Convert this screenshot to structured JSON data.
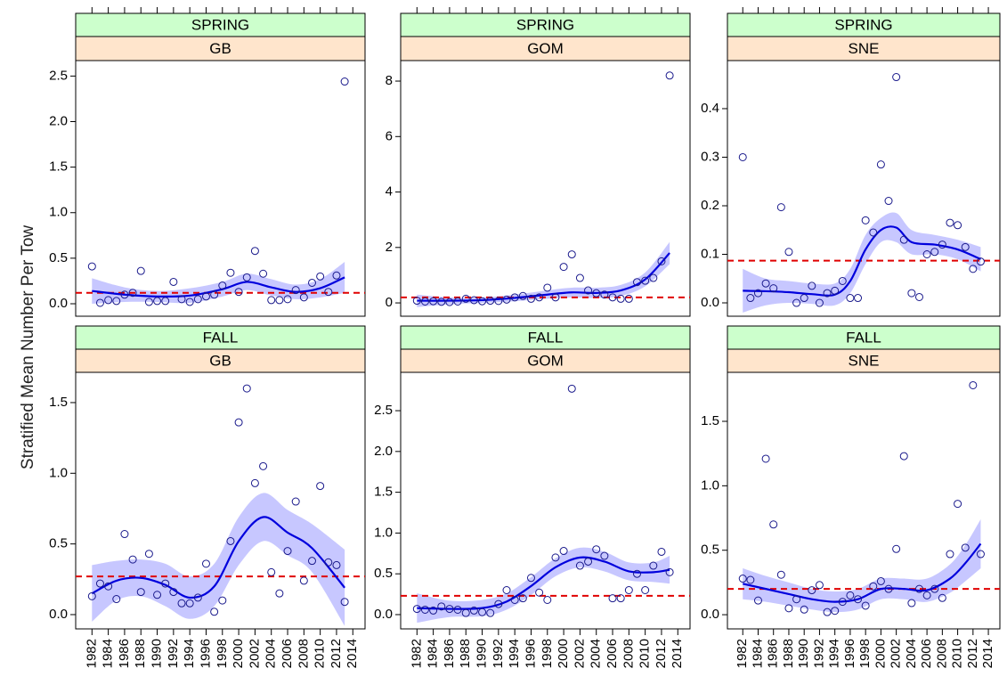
{
  "chart_data": [
    {
      "type": "scatter",
      "season": "SPRING",
      "region": "GB",
      "ylabel": "Stratified Mean Number Per Tow",
      "x": [
        1982,
        1983,
        1984,
        1985,
        1986,
        1987,
        1988,
        1989,
        1990,
        1991,
        1992,
        1993,
        1994,
        1995,
        1996,
        1997,
        1998,
        1999,
        2000,
        2001,
        2002,
        2003,
        2004,
        2005,
        2006,
        2007,
        2008,
        2009,
        2010,
        2011,
        2012,
        2013
      ],
      "values": [
        0.41,
        0.01,
        0.04,
        0.03,
        0.1,
        0.12,
        0.36,
        0.02,
        0.03,
        0.03,
        0.24,
        0.05,
        0.02,
        0.05,
        0.08,
        0.1,
        0.2,
        0.34,
        0.13,
        0.29,
        0.58,
        0.33,
        0.04,
        0.04,
        0.05,
        0.15,
        0.07,
        0.23,
        0.3,
        0.13,
        0.31,
        2.44
      ],
      "smooth": {
        "x": [
          1982,
          1986,
          1990,
          1994,
          1998,
          2001,
          2004,
          2007,
          2010,
          2013
        ],
        "values": [
          0.14,
          0.1,
          0.08,
          0.09,
          0.16,
          0.24,
          0.18,
          0.13,
          0.17,
          0.29
        ],
        "lower": [
          0.0,
          0.02,
          0.02,
          0.01,
          0.08,
          0.15,
          0.09,
          0.05,
          0.07,
          0.12
        ],
        "upper": [
          0.28,
          0.18,
          0.14,
          0.17,
          0.24,
          0.33,
          0.27,
          0.21,
          0.27,
          0.46
        ]
      },
      "mean": 0.12,
      "xlim": [
        1980,
        2015.5
      ],
      "xticks": [
        1982,
        1984,
        1986,
        1988,
        1990,
        1992,
        1994,
        1996,
        1998,
        2000,
        2002,
        2004,
        2006,
        2008,
        2010,
        2012,
        2014
      ],
      "ylim": [
        -0.137,
        2.67
      ],
      "yticks": [
        {
          "value": 0,
          "label": "0.0"
        },
        0.5,
        {
          "value": 1,
          "label": "1.0"
        },
        1.5,
        {
          "value": 2,
          "label": "2.0"
        },
        2.5
      ]
    },
    {
      "type": "scatter",
      "season": "SPRING",
      "region": "GOM",
      "x": [
        1982,
        1983,
        1984,
        1985,
        1986,
        1987,
        1988,
        1989,
        1990,
        1991,
        1992,
        1993,
        1994,
        1995,
        1996,
        1997,
        1998,
        1999,
        2000,
        2001,
        2002,
        2003,
        2004,
        2005,
        2006,
        2007,
        2008,
        2009,
        2010,
        2011,
        2012,
        2013
      ],
      "values": [
        0.08,
        0.05,
        0.06,
        0.04,
        0.03,
        0.05,
        0.15,
        0.1,
        0.06,
        0.08,
        0.07,
        0.12,
        0.2,
        0.25,
        0.15,
        0.2,
        0.55,
        0.2,
        1.3,
        1.75,
        0.9,
        0.45,
        0.35,
        0.3,
        0.2,
        0.15,
        0.15,
        0.75,
        0.8,
        0.9,
        1.5,
        8.2
      ],
      "smooth": {
        "x": [
          1982,
          1986,
          1990,
          1994,
          1998,
          2001,
          2004,
          2007,
          2010,
          2013
        ],
        "values": [
          0.08,
          0.08,
          0.1,
          0.18,
          0.3,
          0.38,
          0.36,
          0.45,
          0.85,
          1.8
        ],
        "lower": [
          -0.15,
          -0.05,
          0.0,
          0.06,
          0.15,
          0.2,
          0.18,
          0.25,
          0.6,
          1.4
        ],
        "upper": [
          0.3,
          0.2,
          0.2,
          0.3,
          0.45,
          0.55,
          0.55,
          0.65,
          1.1,
          2.2
        ]
      },
      "mean": 0.2,
      "xlim": [
        1980,
        2015.5
      ],
      "xticks": [
        1982,
        1984,
        1986,
        1988,
        1990,
        1992,
        1994,
        1996,
        1998,
        2000,
        2002,
        2004,
        2006,
        2008,
        2010,
        2012,
        2014
      ],
      "ylim": [
        -0.48,
        8.74
      ],
      "yticks": [
        0,
        2,
        4,
        6,
        8
      ]
    },
    {
      "type": "scatter",
      "season": "SPRING",
      "region": "SNE",
      "x": [
        1982,
        1983,
        1984,
        1985,
        1986,
        1987,
        1988,
        1989,
        1990,
        1991,
        1992,
        1993,
        1994,
        1995,
        1996,
        1997,
        1998,
        1999,
        2000,
        2001,
        2002,
        2003,
        2004,
        2005,
        2006,
        2007,
        2008,
        2009,
        2010,
        2011,
        2012,
        2013
      ],
      "values": [
        0.3,
        0.01,
        0.02,
        0.04,
        0.03,
        0.197,
        0.105,
        0.0,
        0.01,
        0.035,
        0.0,
        0.02,
        0.025,
        0.045,
        0.01,
        0.01,
        0.17,
        0.145,
        0.285,
        0.21,
        0.465,
        0.13,
        0.02,
        0.012,
        0.1,
        0.105,
        0.12,
        0.165,
        0.16,
        0.115,
        0.07,
        0.085
      ],
      "smooth": {
        "x": [
          1982,
          1985,
          1988,
          1991,
          1994,
          1996,
          1998,
          2000,
          2002,
          2004,
          2007,
          2010,
          2013
        ],
        "values": [
          0.025,
          0.024,
          0.022,
          0.018,
          0.017,
          0.045,
          0.11,
          0.15,
          0.155,
          0.125,
          0.12,
          0.11,
          0.09
        ],
        "lower": [
          -0.02,
          -0.005,
          0.0,
          -0.002,
          -0.005,
          0.02,
          0.08,
          0.125,
          0.125,
          0.1,
          0.1,
          0.09,
          0.065
        ],
        "upper": [
          0.07,
          0.05,
          0.045,
          0.04,
          0.04,
          0.07,
          0.14,
          0.175,
          0.185,
          0.15,
          0.14,
          0.13,
          0.115
        ]
      },
      "mean": 0.087,
      "xlim": [
        1980,
        2015.5
      ],
      "xticks": [
        1982,
        1984,
        1986,
        1988,
        1990,
        1992,
        1994,
        1996,
        1998,
        2000,
        2002,
        2004,
        2006,
        2008,
        2010,
        2012,
        2014
      ],
      "ylim": [
        -0.0275,
        0.499
      ],
      "yticks": [
        {
          "value": 0,
          "label": "0.0"
        },
        0.1,
        0.2,
        0.3,
        0.4
      ]
    },
    {
      "type": "scatter",
      "season": "FALL",
      "region": "GB",
      "x": [
        1982,
        1983,
        1984,
        1985,
        1986,
        1987,
        1988,
        1989,
        1990,
        1991,
        1992,
        1993,
        1994,
        1995,
        1996,
        1997,
        1998,
        1999,
        2000,
        2001,
        2002,
        2003,
        2004,
        2005,
        2006,
        2007,
        2008,
        2009,
        2010,
        2011,
        2012,
        2013
      ],
      "values": [
        0.13,
        0.22,
        0.2,
        0.11,
        0.57,
        0.39,
        0.16,
        0.43,
        0.14,
        0.22,
        0.16,
        0.08,
        0.08,
        0.12,
        0.36,
        0.02,
        0.1,
        0.52,
        1.36,
        1.6,
        0.93,
        1.05,
        0.3,
        0.15,
        0.45,
        0.8,
        0.24,
        0.38,
        0.91,
        0.37,
        0.35,
        0.09
      ],
      "smooth": {
        "x": [
          1982,
          1985,
          1988,
          1991,
          1994,
          1997,
          2000,
          2003,
          2006,
          2009,
          2013
        ],
        "values": [
          0.15,
          0.24,
          0.26,
          0.21,
          0.12,
          0.2,
          0.52,
          0.69,
          0.58,
          0.47,
          0.19
        ],
        "lower": [
          -0.05,
          0.1,
          0.13,
          0.06,
          -0.03,
          0.06,
          0.35,
          0.52,
          0.42,
          0.3,
          -0.08
        ],
        "upper": [
          0.35,
          0.38,
          0.39,
          0.36,
          0.27,
          0.36,
          0.69,
          0.86,
          0.74,
          0.64,
          0.46
        ]
      },
      "mean": 0.27,
      "xlim": [
        1980,
        2015.5
      ],
      "xticks": [
        1982,
        1984,
        1986,
        1988,
        1990,
        1992,
        1994,
        1996,
        1998,
        2000,
        2002,
        2004,
        2006,
        2008,
        2010,
        2012,
        2014
      ],
      "ylim": [
        -0.101,
        1.714
      ],
      "yticks": [
        {
          "value": 0,
          "label": "0.0"
        },
        0.5,
        {
          "value": 1,
          "label": "1.0"
        },
        1.5
      ]
    },
    {
      "type": "scatter",
      "season": "FALL",
      "region": "GOM",
      "x": [
        1982,
        1983,
        1984,
        1985,
        1986,
        1987,
        1988,
        1989,
        1990,
        1991,
        1992,
        1993,
        1994,
        1995,
        1996,
        1997,
        1998,
        1999,
        2000,
        2001,
        2002,
        2003,
        2004,
        2005,
        2006,
        2007,
        2008,
        2009,
        2010,
        2011,
        2012,
        2013
      ],
      "values": [
        0.07,
        0.06,
        0.05,
        0.1,
        0.07,
        0.06,
        0.02,
        0.05,
        0.03,
        0.02,
        0.13,
        0.3,
        0.18,
        0.2,
        0.45,
        0.27,
        0.18,
        0.7,
        0.78,
        2.77,
        0.6,
        0.65,
        0.8,
        0.72,
        0.2,
        0.2,
        0.3,
        0.5,
        0.3,
        0.6,
        0.77,
        0.52
      ],
      "smooth": {
        "x": [
          1982,
          1986,
          1990,
          1993,
          1996,
          1999,
          2002,
          2005,
          2008,
          2011,
          2013
        ],
        "values": [
          0.08,
          0.07,
          0.08,
          0.16,
          0.35,
          0.58,
          0.7,
          0.65,
          0.53,
          0.52,
          0.55
        ],
        "lower": [
          -0.1,
          -0.03,
          -0.02,
          0.06,
          0.24,
          0.47,
          0.58,
          0.53,
          0.42,
          0.4,
          0.38
        ],
        "upper": [
          0.26,
          0.17,
          0.18,
          0.26,
          0.46,
          0.69,
          0.82,
          0.77,
          0.64,
          0.64,
          0.72
        ]
      },
      "mean": 0.23,
      "xlim": [
        1980,
        2015.5
      ],
      "xticks": [
        1982,
        1984,
        1986,
        1988,
        1990,
        1992,
        1994,
        1996,
        1998,
        2000,
        2002,
        2004,
        2006,
        2008,
        2010,
        2012,
        2014
      ],
      "ylim": [
        -0.175,
        2.97
      ],
      "yticks": [
        {
          "value": 0,
          "label": "0.0"
        },
        0.5,
        {
          "value": 1,
          "label": "1.0"
        },
        1.5,
        {
          "value": 2,
          "label": "2.0"
        },
        2.5
      ]
    },
    {
      "type": "scatter",
      "season": "FALL",
      "region": "SNE",
      "x": [
        1982,
        1983,
        1984,
        1985,
        1986,
        1987,
        1988,
        1989,
        1990,
        1991,
        1992,
        1993,
        1994,
        1995,
        1996,
        1997,
        1998,
        1999,
        2000,
        2001,
        2002,
        2003,
        2004,
        2005,
        2006,
        2007,
        2008,
        2009,
        2010,
        2011,
        2012,
        2013
      ],
      "values": [
        0.28,
        0.27,
        0.11,
        1.21,
        0.7,
        0.31,
        0.05,
        0.12,
        0.04,
        0.19,
        0.23,
        0.02,
        0.03,
        0.1,
        0.15,
        0.12,
        0.07,
        0.22,
        0.26,
        0.2,
        0.51,
        1.23,
        0.09,
        0.2,
        0.15,
        0.2,
        0.13,
        0.47,
        0.86,
        0.52,
        1.78,
        0.47
      ],
      "smooth": {
        "x": [
          1982,
          1985,
          1988,
          1991,
          1994,
          1997,
          2000,
          2003,
          2006,
          2009,
          2011,
          2013
        ],
        "values": [
          0.24,
          0.2,
          0.16,
          0.12,
          0.1,
          0.12,
          0.2,
          0.2,
          0.19,
          0.28,
          0.4,
          0.55
        ],
        "lower": [
          0.12,
          0.1,
          0.07,
          0.04,
          0.02,
          0.04,
          0.12,
          0.12,
          0.1,
          0.17,
          0.26,
          0.36
        ],
        "upper": [
          0.36,
          0.3,
          0.25,
          0.2,
          0.18,
          0.2,
          0.28,
          0.28,
          0.28,
          0.39,
          0.54,
          0.74
        ]
      },
      "mean": 0.2,
      "xlim": [
        1980,
        2015.5
      ],
      "xticks": [
        1982,
        1984,
        1986,
        1988,
        1990,
        1992,
        1994,
        1996,
        1998,
        2000,
        2002,
        2004,
        2006,
        2008,
        2010,
        2012,
        2014
      ],
      "ylim": [
        -0.11,
        1.88
      ],
      "yticks": [
        {
          "value": 0,
          "label": "0.0"
        },
        0.5,
        {
          "value": 1,
          "label": "1.0"
        },
        1.5
      ]
    }
  ]
}
